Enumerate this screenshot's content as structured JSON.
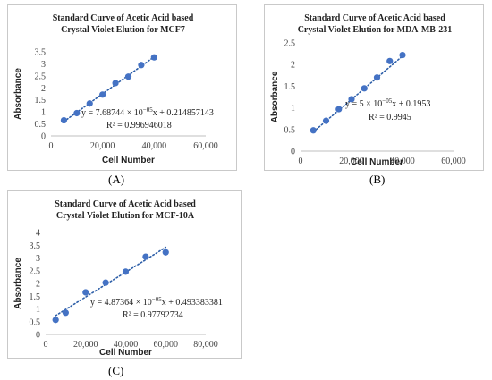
{
  "chart_data": [
    {
      "type": "scatter",
      "panel_label": "(A)",
      "title": [
        "Standard Curve of Acetic Acid based",
        "Crystal Violet Elution for MCF7"
      ],
      "xlabel": "Cell Number",
      "ylabel": "Absorbance",
      "xlim": [
        0,
        60000
      ],
      "ylim": [
        0,
        3.5
      ],
      "xticks": [
        0,
        20000,
        40000,
        60000
      ],
      "xtick_labels": [
        "0",
        "20,000",
        "40,000",
        "60,000"
      ],
      "yticks": [
        0,
        0.5,
        1,
        1.5,
        2,
        2.5,
        3,
        3.5
      ],
      "ytick_labels": [
        "0",
        "0.5",
        "1",
        "1.5",
        "2",
        "2.5",
        "3",
        "3.5"
      ],
      "x": [
        5000,
        10000,
        15000,
        20000,
        25000,
        30000,
        35000,
        40000
      ],
      "y": [
        0.65,
        0.95,
        1.35,
        1.72,
        2.2,
        2.47,
        2.95,
        3.27
      ],
      "equation_prefix": "y = 7.68744 × 10",
      "equation_exp": "−05",
      "equation_suffix": "x + 0.214857143",
      "r2": "R² = 0.996946018",
      "trend_slope": 7.68744e-05,
      "trend_intercept": 0.214857143,
      "trend_x_range": [
        5000,
        40000
      ],
      "grid": false,
      "marker_color": "#4472c4",
      "trend_color": "#2e5fa8"
    },
    {
      "type": "scatter",
      "panel_label": "(B)",
      "title": [
        "Standard Curve of Acetic Acid based",
        "Crystal Violet Elution for MDA-MB-231"
      ],
      "xlabel": "Cell Number",
      "ylabel": "Absorbance",
      "xlim": [
        0,
        60000
      ],
      "ylim": [
        0,
        2.5
      ],
      "xticks": [
        0,
        20000,
        40000,
        60000
      ],
      "xtick_labels": [
        "0",
        "20,000",
        "40,000",
        "60,000"
      ],
      "yticks": [
        0,
        0.5,
        1,
        1.5,
        2,
        2.5
      ],
      "ytick_labels": [
        "0",
        "0.5",
        "1",
        "1.5",
        "2",
        "2.5"
      ],
      "x": [
        5000,
        10000,
        15000,
        20000,
        25000,
        30000,
        35000,
        40000
      ],
      "y": [
        0.48,
        0.7,
        0.97,
        1.2,
        1.45,
        1.7,
        2.08,
        2.22
      ],
      "equation_prefix": "y = 5 × 10",
      "equation_exp": "−05",
      "equation_suffix": "x + 0.1953",
      "r2": "R² = 0.9945",
      "trend_slope": 5e-05,
      "trend_intercept": 0.1953,
      "trend_x_range": [
        5000,
        40000
      ],
      "grid": false,
      "marker_color": "#4472c4",
      "trend_color": "#2e5fa8"
    },
    {
      "type": "scatter",
      "panel_label": "(C)",
      "title": [
        "Standard Curve of Acetic Acid based",
        "Crystal Violet Elution for MCF-10A"
      ],
      "xlabel": "Cell Number",
      "ylabel": "Absorbance",
      "xlim": [
        0,
        80000
      ],
      "ylim": [
        0,
        4
      ],
      "xticks": [
        0,
        20000,
        40000,
        60000,
        80000
      ],
      "xtick_labels": [
        "0",
        "20,000",
        "40,000",
        "60,000",
        "80,000"
      ],
      "yticks": [
        0,
        0.5,
        1,
        1.5,
        2,
        2.5,
        3,
        3.5,
        4
      ],
      "ytick_labels": [
        "0",
        "0.5",
        "1",
        "1.5",
        "2",
        "2.5",
        "3",
        "3.5",
        "4"
      ],
      "x": [
        5000,
        10000,
        20000,
        30000,
        40000,
        50000,
        60000
      ],
      "y": [
        0.57,
        0.85,
        1.65,
        2.03,
        2.46,
        3.05,
        3.22
      ],
      "equation_prefix": "y = 4.87364 × 10",
      "equation_exp": "−05",
      "equation_suffix": "x + 0.493383381",
      "r2": "R² = 0.97792734",
      "trend_slope": 4.87364e-05,
      "trend_intercept": 0.493383381,
      "trend_x_range": [
        5000,
        60000
      ],
      "grid": false,
      "marker_color": "#4472c4",
      "trend_color": "#2e5fa8"
    }
  ]
}
